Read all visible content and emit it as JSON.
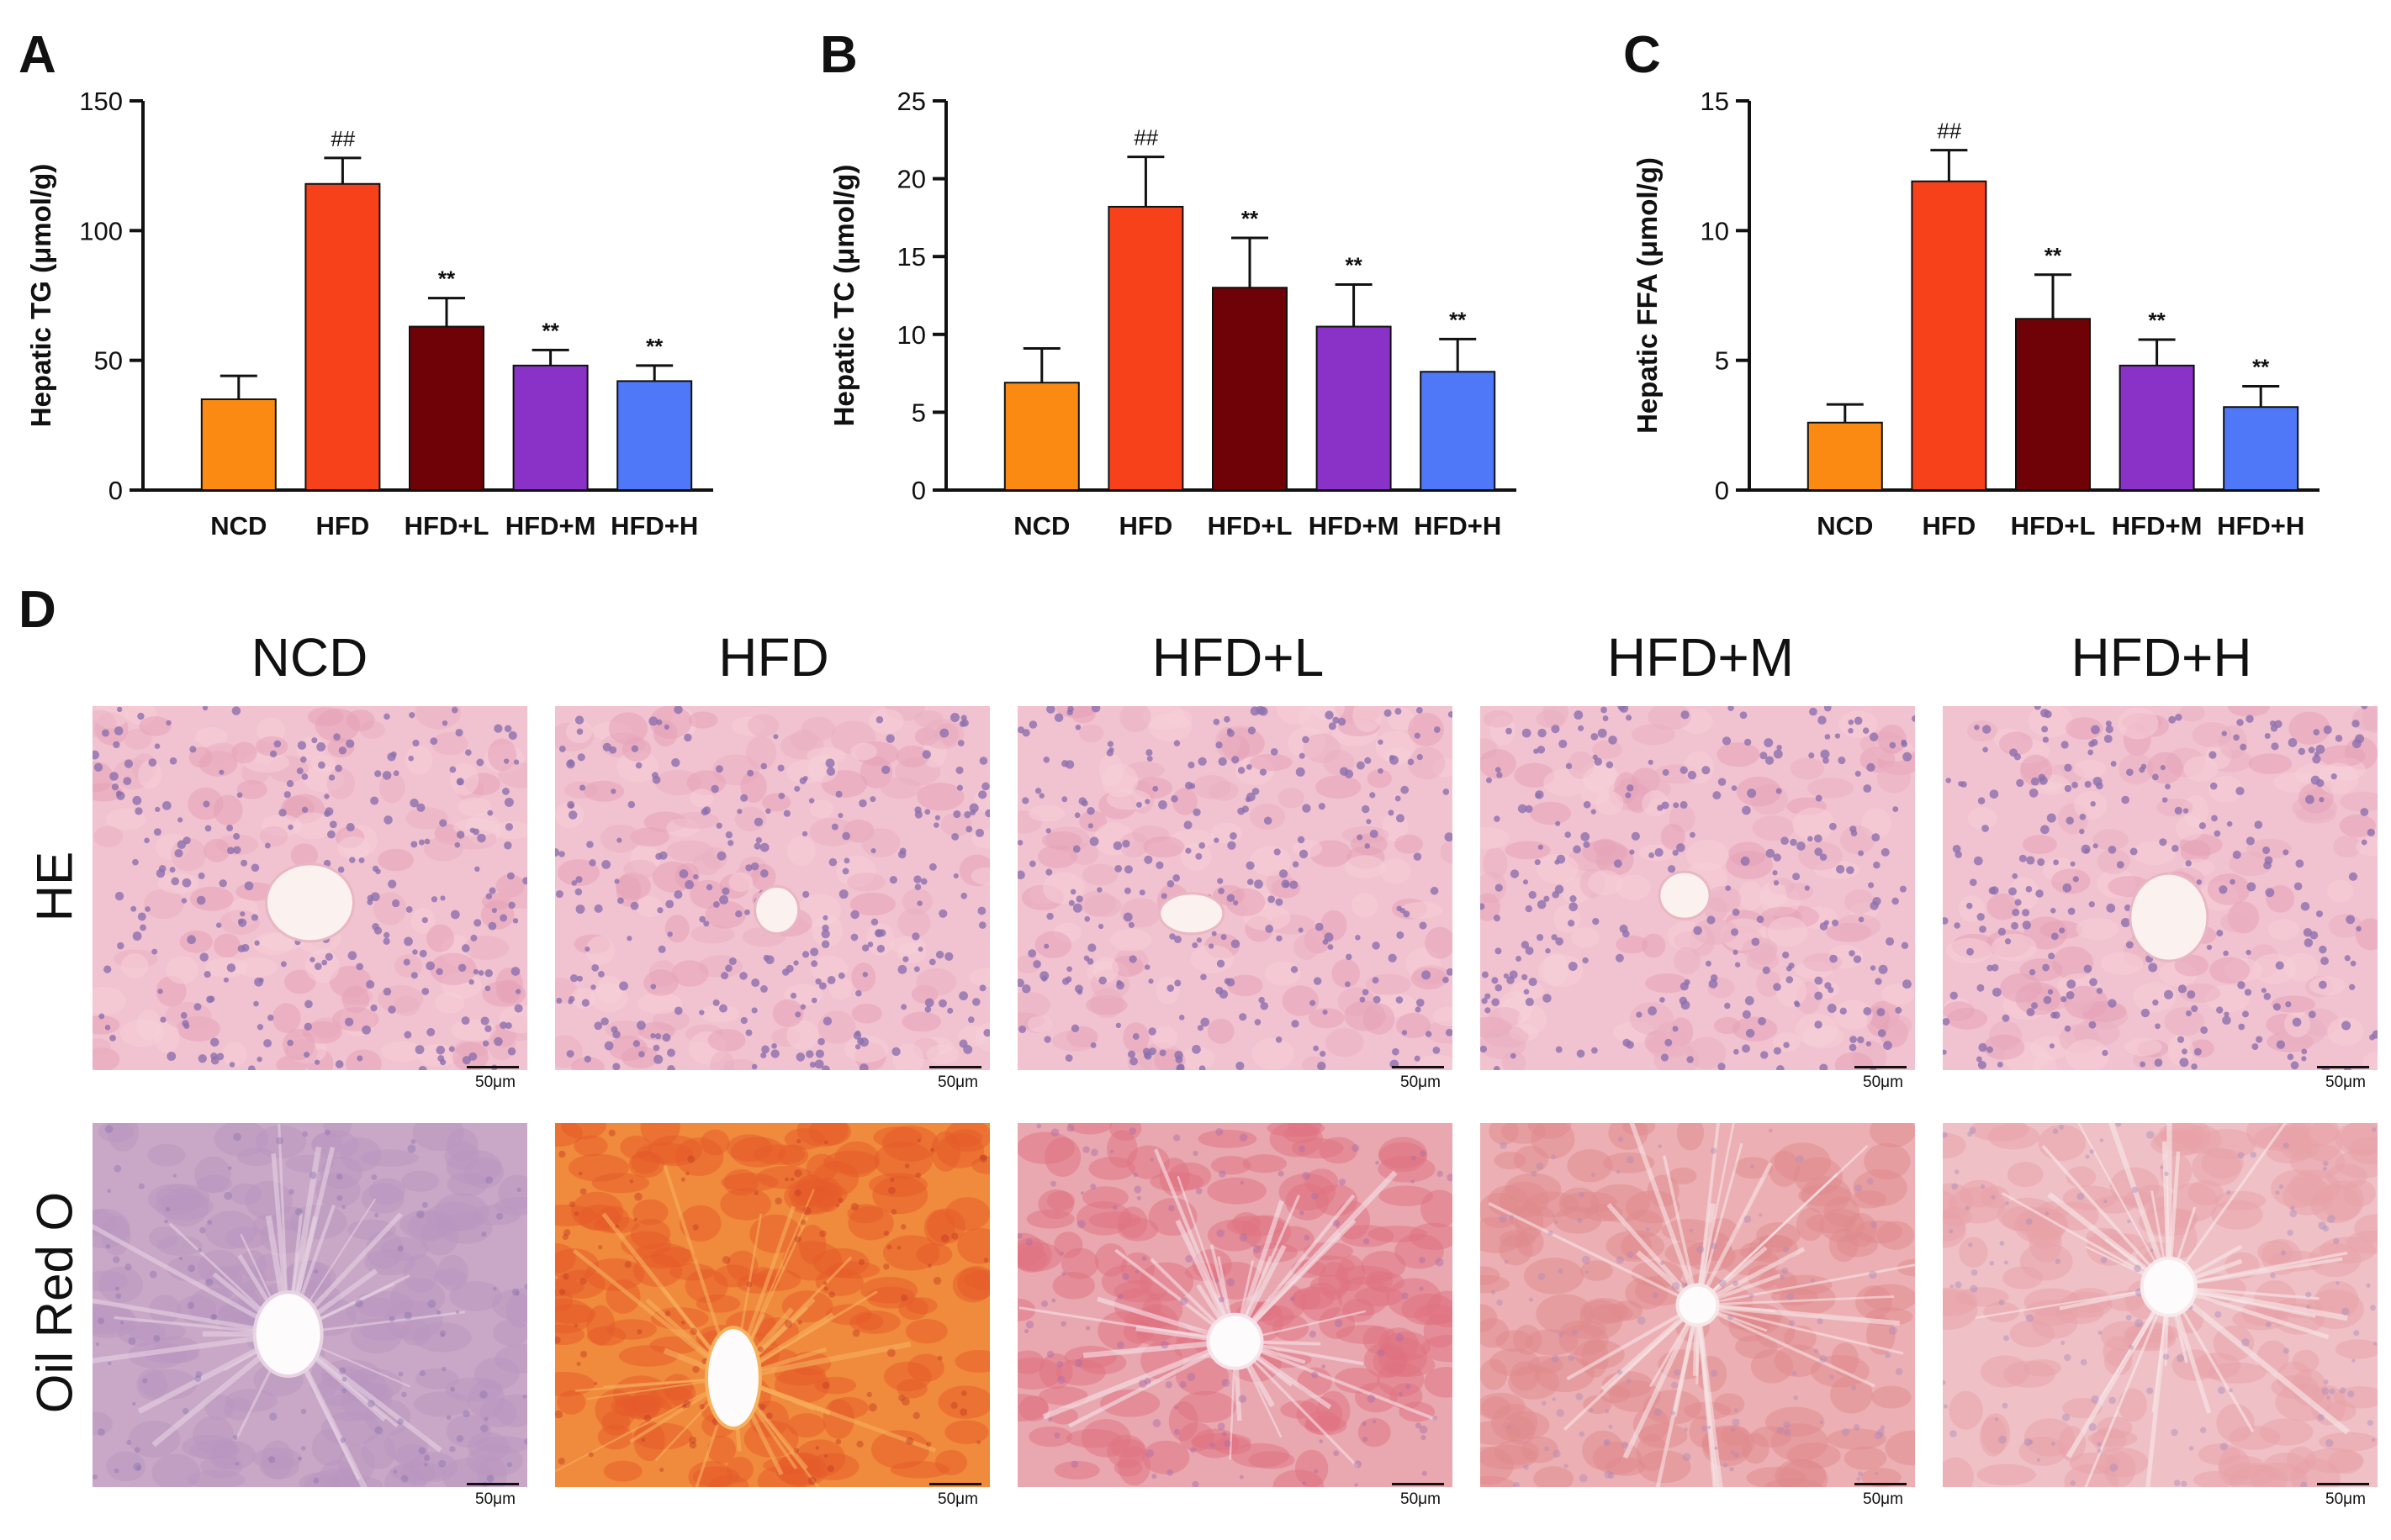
{
  "panels": {
    "a": "A",
    "b": "B",
    "c": "C",
    "d": "D"
  },
  "chart_data": [
    {
      "type": "bar",
      "ylabel": "Hepatic TG (μmol/g)",
      "categories": [
        "NCD",
        "HFD",
        "HFD+L",
        "HFD+M",
        "HFD+H"
      ],
      "values": [
        35,
        118,
        63,
        48,
        42
      ],
      "errors": [
        9,
        10,
        11,
        6,
        6
      ],
      "annotations": [
        "",
        "##",
        "**",
        "**",
        "**"
      ],
      "ylim": [
        0,
        150
      ],
      "yticks": [
        0,
        50,
        100,
        150
      ],
      "tick_labels": [
        "0",
        "50",
        "100",
        "150"
      ]
    },
    {
      "type": "bar",
      "ylabel": "Hepatic TC (μmol/g)",
      "categories": [
        "NCD",
        "HFD",
        "HFD+L",
        "HFD+M",
        "HFD+H"
      ],
      "values": [
        6.9,
        18.2,
        13.0,
        10.5,
        7.6
      ],
      "errors": [
        2.2,
        3.2,
        3.2,
        2.7,
        2.1
      ],
      "annotations": [
        "",
        "##",
        "**",
        "**",
        "**"
      ],
      "ylim": [
        0,
        25
      ],
      "yticks": [
        0,
        5,
        10,
        15,
        20,
        25
      ],
      "tick_labels": [
        "0",
        "5",
        "10",
        "15",
        "20",
        "25"
      ]
    },
    {
      "type": "bar",
      "ylabel": "Hepatic FFA (μmol/g)",
      "categories": [
        "NCD",
        "HFD",
        "HFD+L",
        "HFD+M",
        "HFD+H"
      ],
      "values": [
        2.6,
        11.9,
        6.6,
        4.8,
        3.2
      ],
      "errors": [
        0.7,
        1.2,
        1.7,
        1.0,
        0.8
      ],
      "annotations": [
        "",
        "##",
        "**",
        "**",
        "**"
      ],
      "ylim": [
        0,
        15
      ],
      "yticks": [
        0,
        5,
        10,
        15
      ],
      "tick_labels": [
        "0",
        "5",
        "10",
        "15"
      ]
    }
  ],
  "colors": {
    "bars": [
      "#fb8a12",
      "#f7411b",
      "#6e0206",
      "#8a32c8",
      "#4e78f8"
    ],
    "he_bg": "#f1c2cf",
    "he_nuclei": "#8c6fae",
    "oil_ncd": "#c9a8c7"
  },
  "histology": {
    "columns": [
      "NCD",
      "HFD",
      "HFD+L",
      "HFD+M",
      "HFD+H"
    ],
    "rows": [
      "HE",
      "Oil Red O"
    ],
    "scale_label": "50μm"
  }
}
